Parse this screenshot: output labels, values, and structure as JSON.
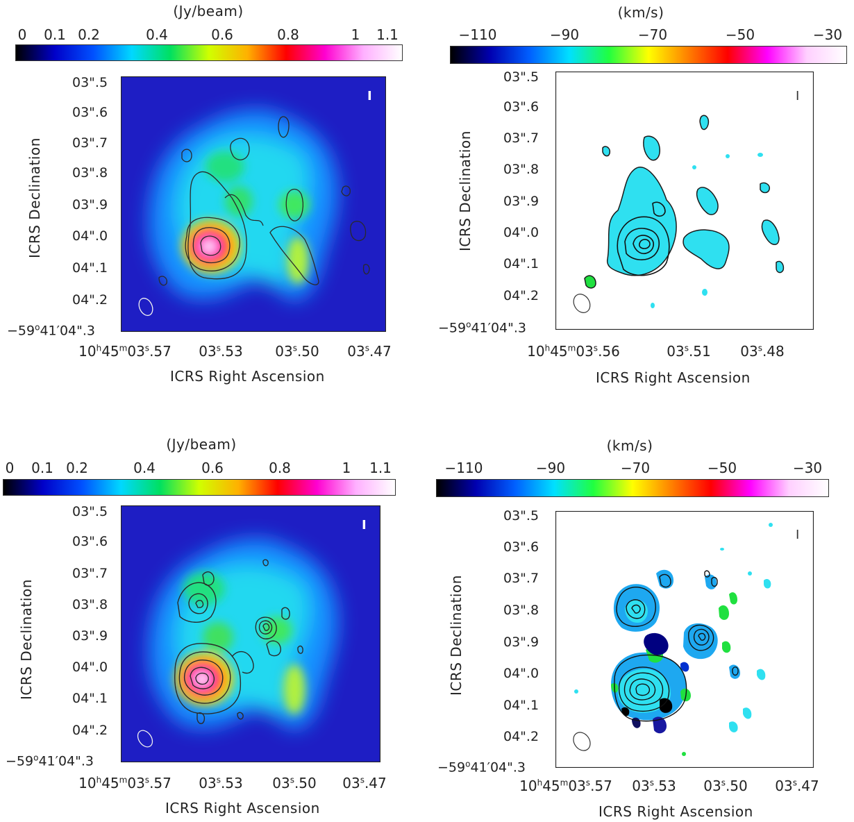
{
  "chart_data": [
    {
      "type": "heatmap",
      "panel": "top-left",
      "colorbar_label": "(Jy/beam)",
      "colorbar_ticks": [
        "0",
        "0.1",
        "0.2",
        "0.4",
        "0.6",
        "0.8",
        "1",
        "1.1"
      ],
      "colorbar_tick_values": [
        0,
        0.1,
        0.2,
        0.4,
        0.6,
        0.8,
        1.0,
        1.1
      ],
      "colorbar_range": [
        0,
        1.15
      ],
      "ylabel": "ICRS Declination",
      "xlabel": "ICRS Right Ascension",
      "yticks": [
        "03\".5",
        "03\".6",
        "03\".7",
        "03\".8",
        "03\".9",
        "04\".0",
        "04\".1",
        "04\".2",
        "−59°41′04\".3"
      ],
      "xticks": [
        "10h45m03s.57",
        "03s.53",
        "03s.50",
        "03s.47"
      ],
      "corner_label": "I",
      "peak_value": 1.1
    },
    {
      "type": "heatmap",
      "panel": "top-right",
      "colorbar_label": "(km/s)",
      "colorbar_ticks": [
        "−110",
        "−90",
        "−70",
        "−50",
        "−30"
      ],
      "colorbar_tick_values": [
        -110,
        -90,
        -70,
        -50,
        -30
      ],
      "colorbar_range": [
        -115,
        -30
      ],
      "ylabel": "ICRS Declination",
      "xlabel": "ICRS Right Ascension",
      "yticks": [
        "03\".5",
        "03\".6",
        "03\".7",
        "03\".8",
        "03\".9",
        "04\".0",
        "04\".1",
        "04\".2",
        "−59°41′04\".3"
      ],
      "xticks": [
        "10h45m03s.56",
        "03s.51",
        "03s.48"
      ],
      "corner_label": "I",
      "dominant_velocity": -80
    },
    {
      "type": "heatmap",
      "panel": "bottom-left",
      "colorbar_label": "(Jy/beam)",
      "colorbar_ticks": [
        "0",
        "0.1",
        "0.2",
        "0.4",
        "0.6",
        "0.8",
        "1",
        "1.1"
      ],
      "colorbar_tick_values": [
        0,
        0.1,
        0.2,
        0.4,
        0.6,
        0.8,
        1.0,
        1.1
      ],
      "colorbar_range": [
        0,
        1.15
      ],
      "ylabel": "ICRS Declination",
      "xlabel": "ICRS Right Ascension",
      "yticks": [
        "03\".5",
        "03\".6",
        "03\".7",
        "03\".8",
        "03\".9",
        "04\".0",
        "04\".1",
        "04\".2",
        "−59°41′04\".3"
      ],
      "xticks": [
        "10h45m03s.57",
        "03s.53",
        "03s.50",
        "03s.47"
      ],
      "corner_label": "I",
      "peak_value": 1.1
    },
    {
      "type": "heatmap",
      "panel": "bottom-right",
      "colorbar_label": "(km/s)",
      "colorbar_ticks": [
        "−110",
        "−90",
        "−70",
        "−50",
        "−30"
      ],
      "colorbar_tick_values": [
        -110,
        -90,
        -70,
        -50,
        -30
      ],
      "colorbar_range": [
        -115,
        -30
      ],
      "ylabel": "ICRS Declination",
      "xlabel": "ICRS Right Ascension",
      "yticks": [
        "03\".5",
        "03\".6",
        "03\".7",
        "03\".8",
        "03\".9",
        "04\".0",
        "04\".1",
        "04\".2",
        "−59°41′04\".3"
      ],
      "xticks": [
        "10h45m03s.57",
        "03s.53",
        "03s.50",
        "03s.47"
      ],
      "corner_label": "I",
      "dominant_velocity": -85
    }
  ],
  "colors": {
    "intensity_colormap": [
      "#000000",
      "#0000c8",
      "#0050ff",
      "#00d8ff",
      "#00e060",
      "#d0ff00",
      "#ffb000",
      "#ff0000",
      "#ff00d0",
      "#ffb0ff",
      "#ffffff"
    ],
    "velocity_colormap": [
      "#000000",
      "#0000b0",
      "#0060ff",
      "#00e0ff",
      "#20ff40",
      "#ffff00",
      "#ff8000",
      "#ff0000",
      "#ff00ff",
      "#ffd0ff",
      "#ffffff"
    ],
    "map_background": "#1c1cc0",
    "cyan_fill": "#2fe0f0",
    "contour": "#2a2a2a"
  }
}
